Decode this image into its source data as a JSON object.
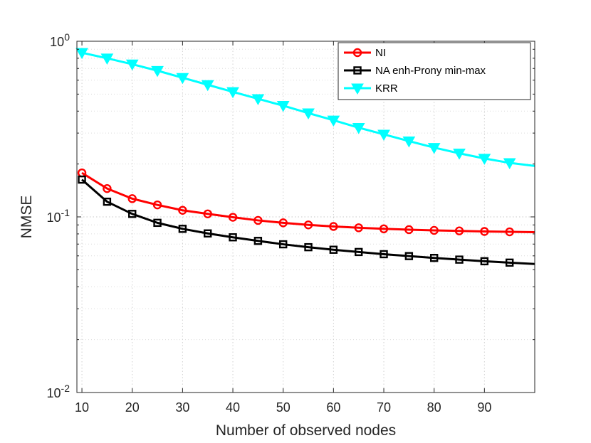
{
  "chart_data": {
    "type": "line",
    "xlabel": "Number of observed nodes",
    "ylabel": "NMSE",
    "yscale": "log",
    "xlim": [
      9,
      100
    ],
    "ylim": [
      0.01,
      1
    ],
    "x_ticks": [
      10,
      20,
      30,
      40,
      50,
      60,
      70,
      80,
      90
    ],
    "y_ticks": [
      {
        "value": 1,
        "base": "10",
        "exp": "0"
      },
      {
        "value": 0.1,
        "base": "10",
        "exp": "-1"
      },
      {
        "value": 0.01,
        "base": "10",
        "exp": "-2"
      }
    ],
    "grid": true,
    "legend_position": "top-right",
    "x": [
      10,
      15,
      20,
      25,
      30,
      35,
      40,
      45,
      50,
      55,
      60,
      65,
      70,
      75,
      80,
      85,
      90,
      95,
      100
    ],
    "series": [
      {
        "name": "NI",
        "color": "#ff0000",
        "marker": "circle",
        "values": [
          0.178,
          0.145,
          0.127,
          0.117,
          0.109,
          0.104,
          0.0995,
          0.0955,
          0.0925,
          0.09,
          0.0882,
          0.0867,
          0.0855,
          0.0846,
          0.0838,
          0.0832,
          0.0826,
          0.0822,
          0.0818
        ]
      },
      {
        "name": "NA enh-Prony min-max",
        "color": "#000000",
        "marker": "square",
        "values": [
          0.163,
          0.122,
          0.104,
          0.0925,
          0.0855,
          0.0805,
          0.0765,
          0.073,
          0.0698,
          0.0672,
          0.065,
          0.0631,
          0.0613,
          0.0598,
          0.0584,
          0.0571,
          0.0559,
          0.0549,
          0.0539
        ]
      },
      {
        "name": "KRR",
        "color": "#00ffff",
        "marker": "triangle-down",
        "values": [
          0.86,
          0.8,
          0.74,
          0.68,
          0.62,
          0.565,
          0.515,
          0.47,
          0.43,
          0.39,
          0.355,
          0.322,
          0.295,
          0.27,
          0.248,
          0.23,
          0.215,
          0.203,
          0.195
        ]
      }
    ]
  }
}
